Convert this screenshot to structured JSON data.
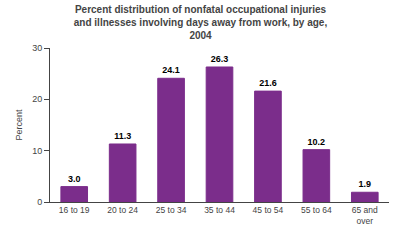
{
  "chart_data": {
    "type": "bar",
    "title": "Percent distribution of nonfatal occupational injuries\nand illnesses involving days away from work, by age,\n2004",
    "categories": [
      "16 to 19",
      "20 to 24",
      "25 to 34",
      "35 to 44",
      "45 to 54",
      "55 to 64",
      "65 and\nover"
    ],
    "values": [
      3.0,
      11.3,
      24.1,
      26.3,
      21.6,
      10.2,
      1.9
    ],
    "value_labels": [
      "3.0",
      "11.3",
      "24.1",
      "26.3",
      "21.6",
      "10.2",
      "1.9"
    ],
    "data_labels": true,
    "color": "#7B2D8B",
    "ylabel": "Percent",
    "ylim": [
      0,
      30
    ],
    "yticks": [
      0,
      10,
      20,
      30
    ],
    "grid": false
  }
}
